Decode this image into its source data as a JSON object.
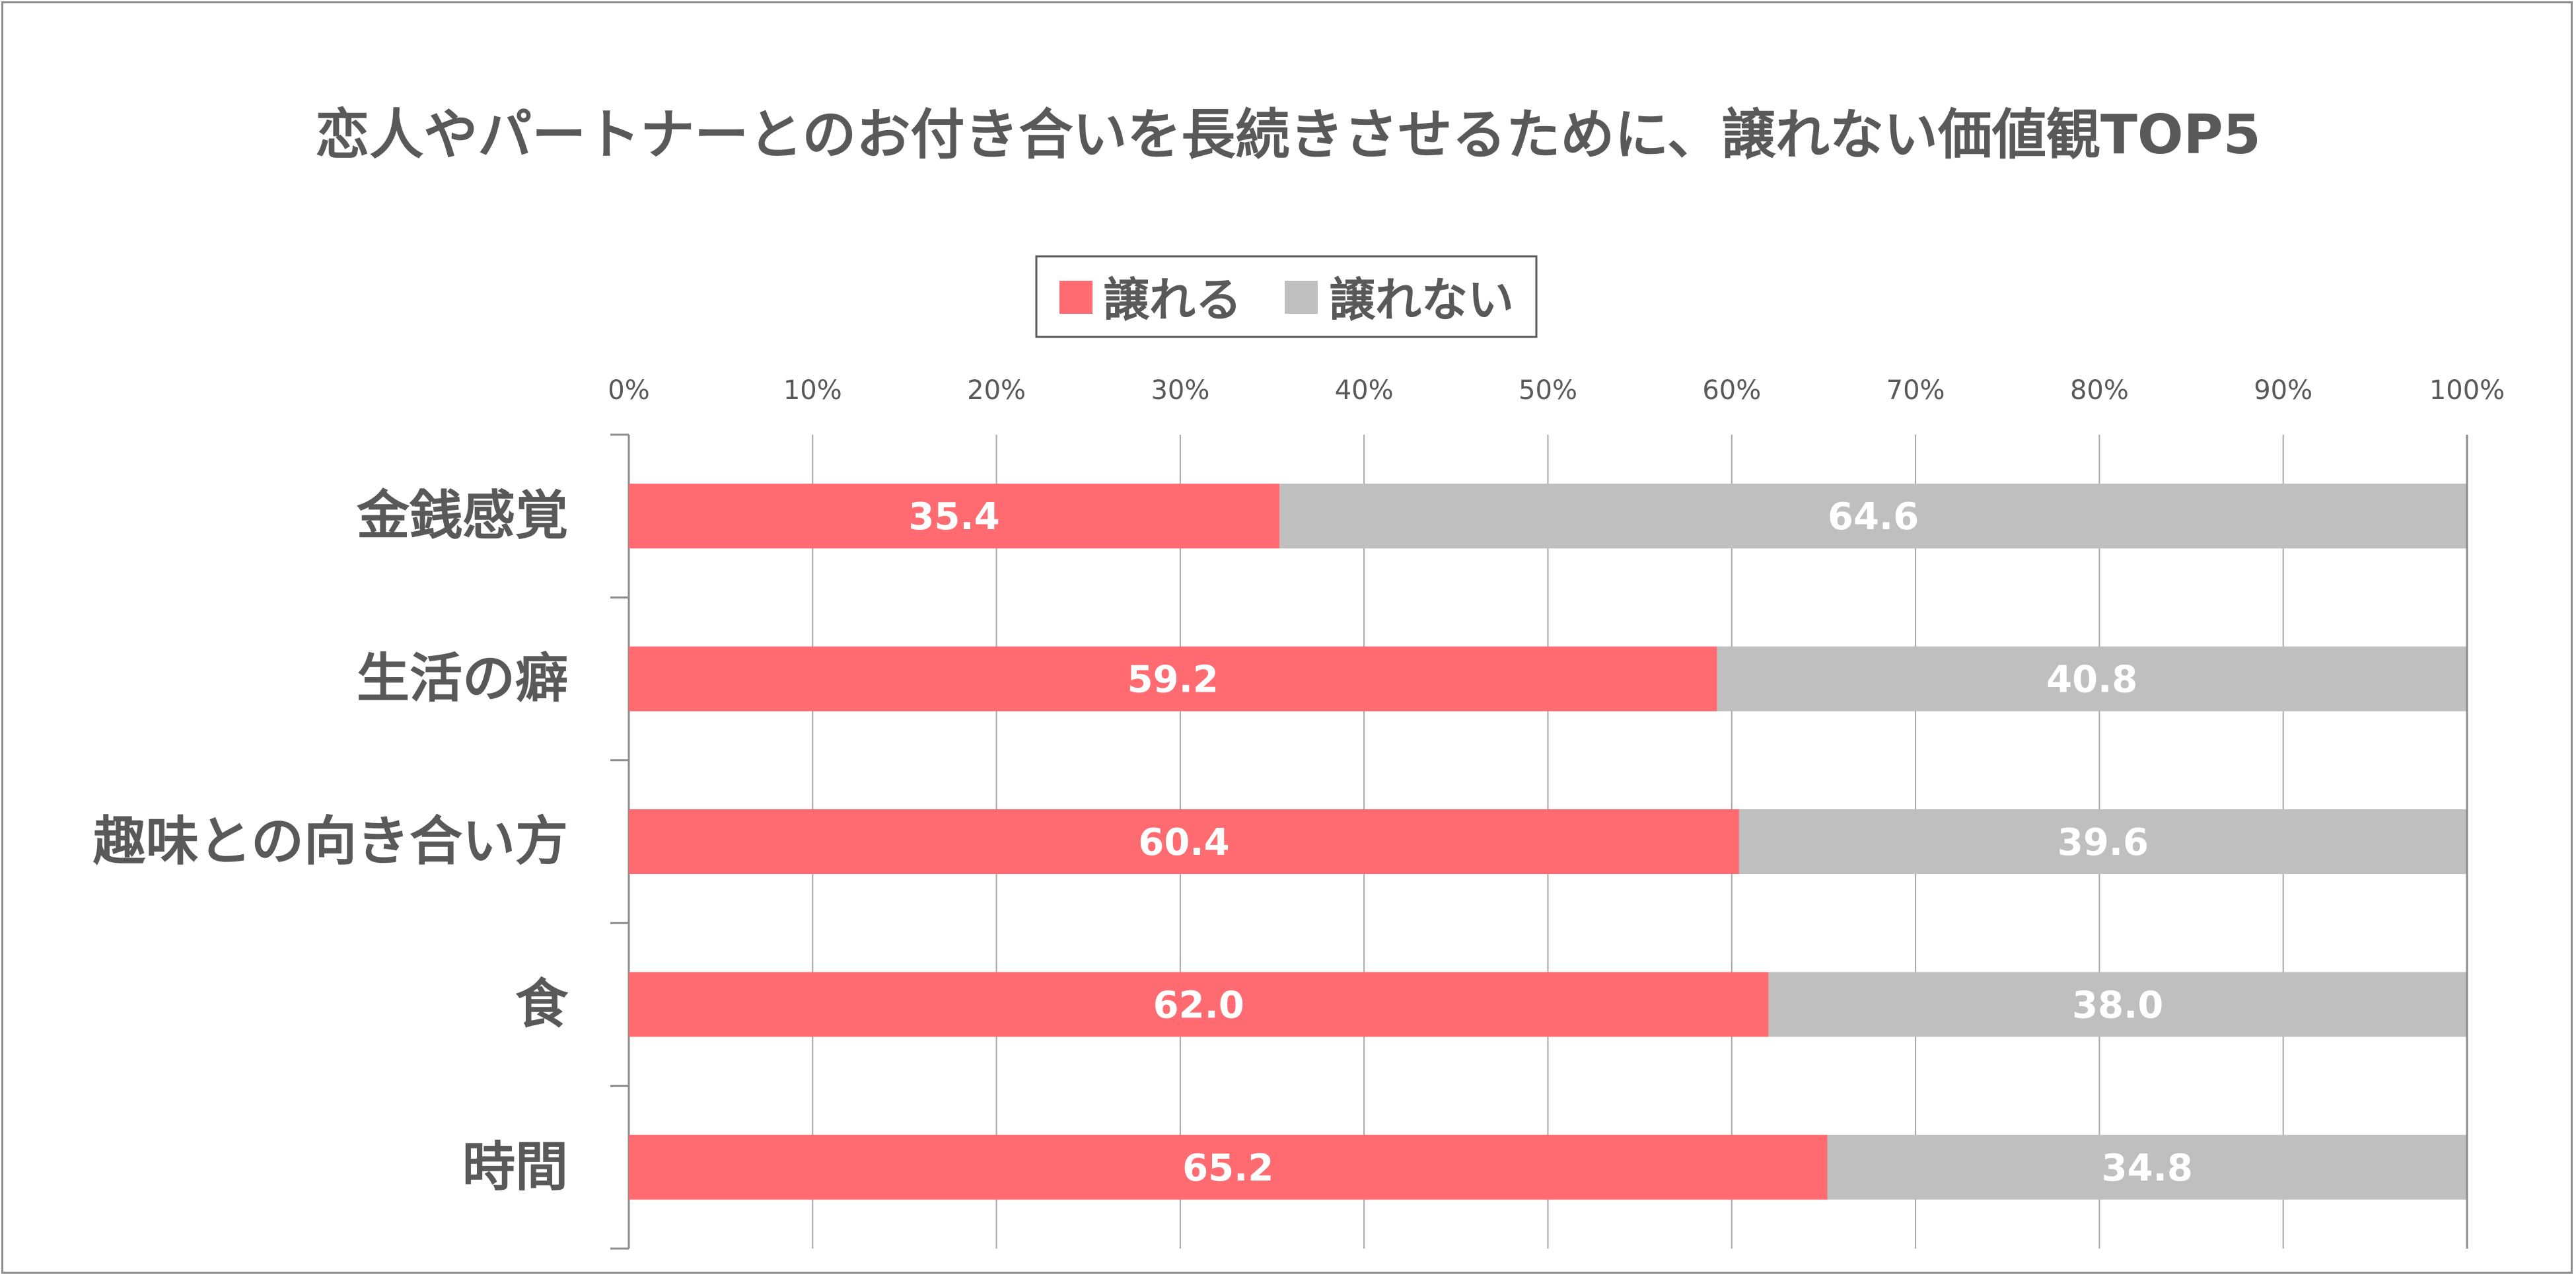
{
  "chart_data": {
    "type": "bar",
    "stacked": true,
    "orientation": "horizontal",
    "percent_axis": true,
    "title": "恋人やパートナーとのお付き合いを長続きさせるために、譲れない価値観TOP5",
    "categories": [
      "金銭感覚",
      "生活の癖",
      "趣味との向き合い方",
      "食",
      "時間"
    ],
    "series": [
      {
        "name": "譲れる",
        "color": "#ff6b71",
        "values": [
          35.4,
          59.2,
          60.4,
          62.0,
          65.2
        ]
      },
      {
        "name": "譲れない",
        "color": "#bfbfbf",
        "values": [
          64.6,
          40.8,
          39.6,
          38.0,
          34.8
        ]
      }
    ],
    "value_labels": [
      [
        "35.4",
        "59.2",
        "60.4",
        "62.0",
        "65.2"
      ],
      [
        "64.6",
        "40.8",
        "39.6",
        "38.0",
        "34.8"
      ]
    ],
    "xlim": [
      0,
      100
    ],
    "xticks": [
      "0%",
      "10%",
      "20%",
      "30%",
      "40%",
      "50%",
      "60%",
      "70%",
      "80%",
      "90%",
      "100%"
    ],
    "grid": true,
    "legend_position": "top-center"
  }
}
